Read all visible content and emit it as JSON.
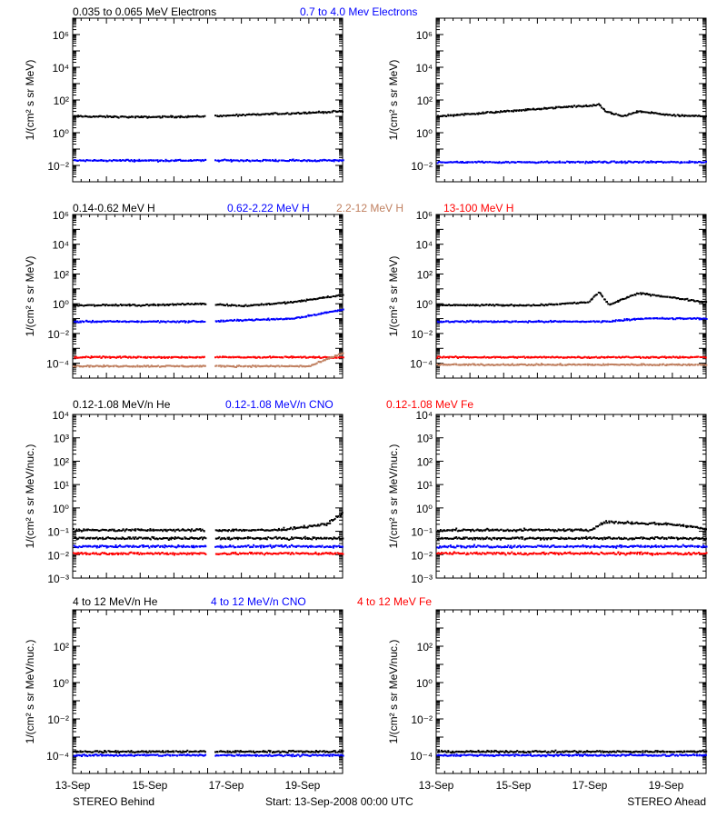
{
  "chart_data": {
    "type": "scatter",
    "x_ticks": [
      "13-Sep",
      "15-Sep",
      "17-Sep",
      "19-Sep"
    ],
    "x_range_days": 8,
    "start_label": "Start: 13-Sep-2008 00:00 UTC",
    "left_label": "STEREO Behind",
    "right_label": "STEREO Ahead",
    "colors": {
      "black": "#000000",
      "blue": "#0000ff",
      "red": "#ff0000",
      "tan": "#c08060"
    },
    "rows": [
      {
        "ylabel": "1/(cm² s sr MeV)",
        "ylim_log": [
          -3,
          7
        ],
        "y_ticks": [
          {
            "exp": 6,
            "label": "10⁶"
          },
          {
            "exp": 4,
            "label": "10⁴"
          },
          {
            "exp": 2,
            "label": "10²"
          },
          {
            "exp": 0,
            "label": "10⁰"
          },
          {
            "exp": -2,
            "label": "10⁻²"
          }
        ],
        "legend": [
          {
            "text": "0.035 to 0.065 MeV Electrons",
            "color": "#000000"
          },
          {
            "text": "0.7 to 4.0 Mev Electrons",
            "color": "#0000ff"
          }
        ],
        "panels": [
          {
            "name": "STEREO Behind",
            "series": [
              {
                "color": "#000000",
                "log_level": [
                  [
                    0,
                    1.0
                  ],
                  [
                    2,
                    0.95
                  ],
                  [
                    4,
                    1.0
                  ],
                  [
                    6,
                    1.15
                  ],
                  [
                    8,
                    1.3
                  ]
                ]
              },
              {
                "color": "#0000ff",
                "log_level": [
                  [
                    0,
                    -1.7
                  ],
                  [
                    8,
                    -1.7
                  ]
                ]
              }
            ]
          },
          {
            "name": "STEREO Ahead",
            "series": [
              {
                "color": "#000000",
                "log_level": [
                  [
                    0,
                    1.0
                  ],
                  [
                    2,
                    1.3
                  ],
                  [
                    4,
                    1.6
                  ],
                  [
                    4.6,
                    1.65
                  ],
                  [
                    4.8,
                    1.7
                  ],
                  [
                    5.0,
                    1.3
                  ],
                  [
                    5.5,
                    1.0
                  ],
                  [
                    6.0,
                    1.3
                  ],
                  [
                    7.0,
                    1.05
                  ],
                  [
                    8,
                    1.0
                  ]
                ]
              },
              {
                "color": "#0000ff",
                "log_level": [
                  [
                    0,
                    -1.8
                  ],
                  [
                    8,
                    -1.8
                  ]
                ]
              }
            ]
          }
        ]
      },
      {
        "ylabel": "1/(cm² s sr MeV)",
        "ylim_log": [
          -5,
          6
        ],
        "y_ticks": [
          {
            "exp": 6,
            "label": "10⁶"
          },
          {
            "exp": 4,
            "label": "10⁴"
          },
          {
            "exp": 2,
            "label": "10²"
          },
          {
            "exp": 0,
            "label": "10⁰"
          },
          {
            "exp": -2,
            "label": "10⁻²"
          },
          {
            "exp": -4,
            "label": "10⁻⁴"
          }
        ],
        "legend": [
          {
            "text": "0.14-0.62 MeV H",
            "color": "#000000"
          },
          {
            "text": "0.62-2.22 MeV H",
            "color": "#0000ff"
          },
          {
            "text": "2.2-12 MeV H",
            "color": "#c08060"
          },
          {
            "text": "13-100 MeV H",
            "color": "#ff0000"
          }
        ],
        "panels": [
          {
            "name": "STEREO Behind",
            "series": [
              {
                "color": "#000000",
                "log_level": [
                  [
                    0,
                    -0.1
                  ],
                  [
                    2,
                    -0.1
                  ],
                  [
                    4,
                    0
                  ],
                  [
                    5,
                    -0.15
                  ],
                  [
                    6.5,
                    0.1
                  ],
                  [
                    8,
                    0.6
                  ]
                ]
              },
              {
                "color": "#0000ff",
                "log_level": [
                  [
                    0,
                    -1.2
                  ],
                  [
                    4,
                    -1.2
                  ],
                  [
                    5,
                    -1.1
                  ],
                  [
                    6.5,
                    -1.0
                  ],
                  [
                    8,
                    -0.4
                  ]
                ]
              },
              {
                "color": "#ff0000",
                "log_level": [
                  [
                    0,
                    -3.6
                  ],
                  [
                    8,
                    -3.6
                  ]
                ]
              },
              {
                "color": "#c08060",
                "log_level": [
                  [
                    0,
                    -4.2
                  ],
                  [
                    7,
                    -4.2
                  ],
                  [
                    8,
                    -3.3
                  ]
                ]
              }
            ]
          },
          {
            "name": "STEREO Ahead",
            "series": [
              {
                "color": "#000000",
                "log_level": [
                  [
                    0,
                    -0.1
                  ],
                  [
                    3,
                    -0.1
                  ],
                  [
                    4.5,
                    0.1
                  ],
                  [
                    4.8,
                    0.8
                  ],
                  [
                    5.1,
                    -0.1
                  ],
                  [
                    5.6,
                    0.4
                  ],
                  [
                    6.0,
                    0.7
                  ],
                  [
                    7,
                    0.4
                  ],
                  [
                    8,
                    0.1
                  ]
                ]
              },
              {
                "color": "#0000ff",
                "log_level": [
                  [
                    0,
                    -1.2
                  ],
                  [
                    5,
                    -1.2
                  ],
                  [
                    6,
                    -1.0
                  ],
                  [
                    8,
                    -1.0
                  ]
                ]
              },
              {
                "color": "#ff0000",
                "log_level": [
                  [
                    0,
                    -3.6
                  ],
                  [
                    8,
                    -3.6
                  ]
                ]
              },
              {
                "color": "#c08060",
                "log_level": [
                  [
                    0,
                    -4.1
                  ],
                  [
                    8,
                    -4.1
                  ]
                ]
              }
            ]
          }
        ]
      },
      {
        "ylabel": "1/(cm² s sr MeV/nuc.)",
        "ylim_log": [
          -3,
          4
        ],
        "y_ticks": [
          {
            "exp": 4,
            "label": "10⁴"
          },
          {
            "exp": 3,
            "label": "10³"
          },
          {
            "exp": 2,
            "label": "10²"
          },
          {
            "exp": 1,
            "label": "10¹"
          },
          {
            "exp": 0,
            "label": "10⁰"
          },
          {
            "exp": -1,
            "label": "10⁻¹"
          },
          {
            "exp": -2,
            "label": "10⁻²"
          },
          {
            "exp": -3,
            "label": "10⁻³"
          }
        ],
        "legend": [
          {
            "text": "0.12-1.08 MeV/n He",
            "color": "#000000"
          },
          {
            "text": "0.12-1.08 MeV/n CNO",
            "color": "#0000ff"
          },
          {
            "text": "0.12-1.08 MeV Fe",
            "color": "#ff0000"
          }
        ],
        "panels": [
          {
            "name": "STEREO Behind",
            "series": [
              {
                "color": "#000000",
                "log_level": [
                  [
                    0,
                    -0.95
                  ],
                  [
                    6,
                    -0.95
                  ],
                  [
                    7.5,
                    -0.7
                  ],
                  [
                    8,
                    -0.2
                  ]
                ]
              },
              {
                "color": "#000000",
                "log_level": [
                  [
                    0,
                    -1.3
                  ],
                  [
                    8,
                    -1.3
                  ]
                ]
              },
              {
                "color": "#0000ff",
                "log_level": [
                  [
                    0,
                    -1.65
                  ],
                  [
                    8,
                    -1.65
                  ]
                ]
              },
              {
                "color": "#ff0000",
                "log_level": [
                  [
                    0,
                    -1.95
                  ],
                  [
                    8,
                    -1.95
                  ]
                ]
              }
            ]
          },
          {
            "name": "STEREO Ahead",
            "series": [
              {
                "color": "#000000",
                "log_level": [
                  [
                    0,
                    -0.95
                  ],
                  [
                    4.5,
                    -0.95
                  ],
                  [
                    5,
                    -0.6
                  ],
                  [
                    7,
                    -0.7
                  ],
                  [
                    8,
                    -0.9
                  ]
                ]
              },
              {
                "color": "#000000",
                "log_level": [
                  [
                    0,
                    -1.3
                  ],
                  [
                    8,
                    -1.3
                  ]
                ]
              },
              {
                "color": "#0000ff",
                "log_level": [
                  [
                    0,
                    -1.65
                  ],
                  [
                    8,
                    -1.65
                  ]
                ]
              },
              {
                "color": "#ff0000",
                "log_level": [
                  [
                    0,
                    -1.95
                  ],
                  [
                    8,
                    -1.95
                  ]
                ]
              }
            ]
          }
        ]
      },
      {
        "ylabel": "1/(cm² s sr MeV/nuc.)",
        "ylim_log": [
          -5,
          4
        ],
        "y_ticks": [
          {
            "exp": 2,
            "label": "10²"
          },
          {
            "exp": 0,
            "label": "10⁰"
          },
          {
            "exp": -2,
            "label": "10⁻²"
          },
          {
            "exp": -4,
            "label": "10⁻⁴"
          }
        ],
        "legend": [
          {
            "text": "4 to 12 MeV/n He",
            "color": "#000000"
          },
          {
            "text": "4 to 12 MeV/n CNO",
            "color": "#0000ff"
          },
          {
            "text": "4 to 12 MeV Fe",
            "color": "#ff0000"
          }
        ],
        "panels": [
          {
            "name": "STEREO Behind",
            "series": [
              {
                "color": "#000000",
                "log_level": [
                  [
                    0,
                    -3.8
                  ],
                  [
                    8,
                    -3.8
                  ]
                ]
              },
              {
                "color": "#0000ff",
                "log_level": [
                  [
                    0,
                    -4.0
                  ],
                  [
                    8,
                    -4.0
                  ]
                ]
              }
            ]
          },
          {
            "name": "STEREO Ahead",
            "series": [
              {
                "color": "#000000",
                "log_level": [
                  [
                    0,
                    -3.8
                  ],
                  [
                    8,
                    -3.8
                  ]
                ]
              },
              {
                "color": "#0000ff",
                "log_level": [
                  [
                    0,
                    -4.0
                  ],
                  [
                    8,
                    -4.0
                  ]
                ]
              }
            ]
          }
        ]
      }
    ]
  }
}
